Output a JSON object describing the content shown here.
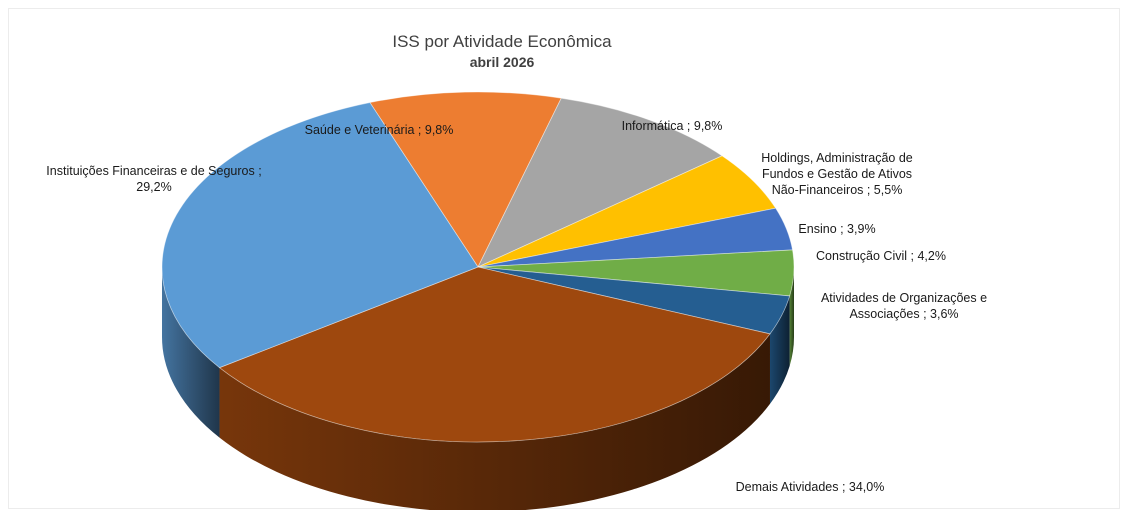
{
  "chart_data": {
    "type": "pie",
    "style": "3d",
    "title": "ISS por Atividade Econômica",
    "subtitle": "abril 2026",
    "legend": "none",
    "slices": [
      {
        "label": "Saúde e Veterinária ; 9,8%",
        "value": 9.8,
        "color": "#ED7D31"
      },
      {
        "label": "Informática ; 9,8%",
        "value": 9.8,
        "color": "#A5A5A5"
      },
      {
        "label": "Holdings, Administração de Fundos e Gestão de Ativos Não-Financeiros ; 5,5%",
        "value": 5.5,
        "color": "#FFC000"
      },
      {
        "label": "Ensino ; 3,9%",
        "value": 3.9,
        "color": "#4472C4"
      },
      {
        "label": "Construção Civil ; 4,2%",
        "value": 4.2,
        "color": "#70AD47"
      },
      {
        "label": "Atividades de Organizações e Associações ; 3,6%",
        "value": 3.6,
        "color": "#255E91"
      },
      {
        "label": "Demais Atividades ; 34,0%",
        "value": 34.0,
        "color": "#9E480E"
      },
      {
        "label": "Instituições Financeiras e de Seguros ; 29,2%",
        "value": 29.2,
        "color": "#5B9BD5"
      }
    ]
  }
}
